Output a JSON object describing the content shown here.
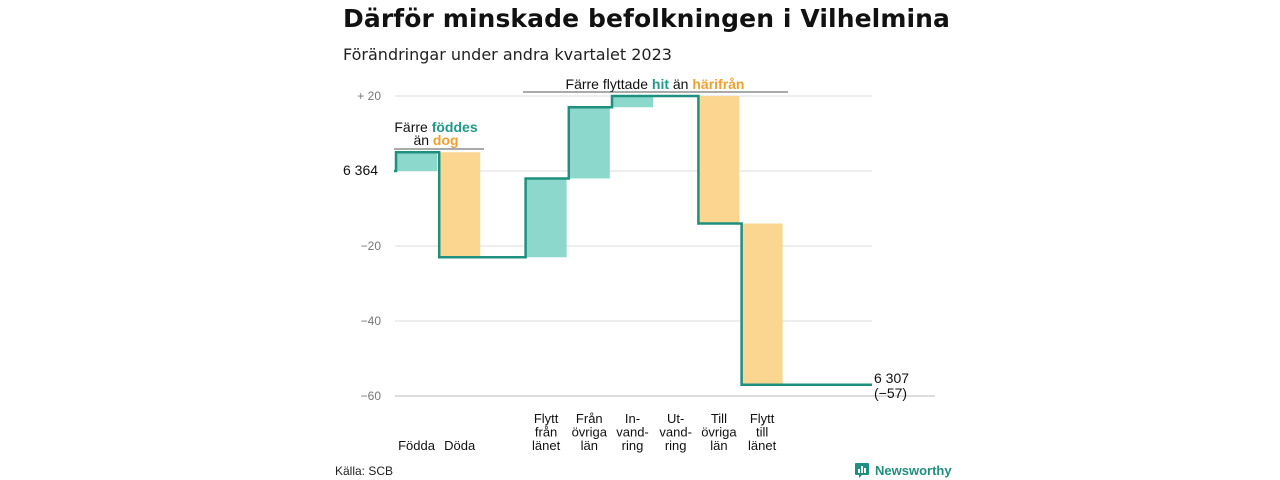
{
  "title": "Därför minskade befolkningen i Vilhelmina",
  "subtitle": "Förändringar under andra kvartalet 2023",
  "source": "Källa: SCB",
  "brand": {
    "name": "Newsworthy",
    "icon": "bar-chart-icon",
    "color": "#1f8f7f"
  },
  "colors": {
    "increase": "#8dd8cc",
    "decrease": "#fad690",
    "line": "#1f8f7f",
    "highlight_teal": "#1f9a8a",
    "highlight_orange": "#f0a030"
  },
  "annotations": {
    "births": {
      "prefix": "Färre ",
      "highlight1": "föddes",
      "mid": "än ",
      "highlight2": "dog"
    },
    "moves": {
      "prefix": "Färre flyttade ",
      "highlight1": "hit",
      "mid": " än ",
      "highlight2": "härifrån"
    }
  },
  "start_label": "6  364",
  "end_label": [
    "6 307",
    "(−57)"
  ],
  "chart_data": {
    "type": "waterfall",
    "start_value": 6364,
    "end_value": 6307,
    "total_change": -57,
    "y_axis": {
      "ticks": [
        "+  20",
        "",
        "−20",
        "−40",
        "−60"
      ],
      "range": [
        -60,
        20
      ]
    },
    "categories": [
      [
        "Födda"
      ],
      [
        "Döda"
      ],
      [
        "Flytt",
        "från",
        "länet"
      ],
      [
        "Från",
        "övriga",
        "län"
      ],
      [
        "In-",
        "vand-",
        "ring"
      ],
      [
        "Ut-",
        "vand-",
        "ring"
      ],
      [
        "Till",
        "övriga",
        "län"
      ],
      [
        "Flytt",
        "till",
        "länet"
      ]
    ],
    "changes": [
      5,
      -28,
      21,
      19,
      3,
      0,
      -34,
      -43
    ]
  }
}
